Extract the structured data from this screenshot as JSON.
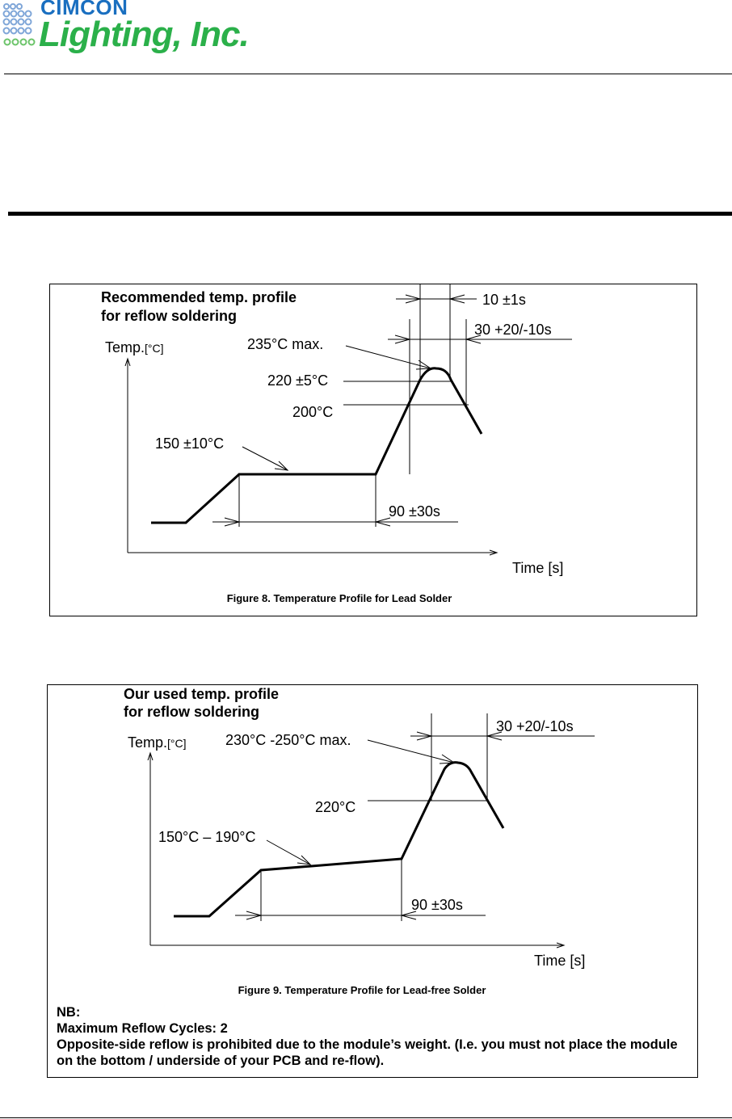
{
  "header": {
    "logo_top": "CIMCON",
    "logo_main": "Lighting, Inc."
  },
  "figure8": {
    "title_line1": "Recommended temp. profile",
    "title_line2": "for reflow soldering",
    "y_axis_label": "Temp.",
    "y_axis_unit": "[°C]",
    "x_axis_label": "Time [s]",
    "peak_label": "235°C max.",
    "peak_time_label": "10 ±1s",
    "above_200_time_label": "30 +20/-10s",
    "level_220_label": "220 ±5°C",
    "level_200_label": "200°C",
    "preheat_label": "150 ±10°C",
    "preheat_time_label": "90 ±30s",
    "caption": "Figure 8.  Temperature Profile for Lead Solder"
  },
  "figure9": {
    "title_line1": "Our used temp. profile",
    "title_line2": "for reflow soldering",
    "y_axis_label": "Temp.",
    "y_axis_unit": "[°C]",
    "x_axis_label": "Time [s]",
    "peak_label": "230°C -250°C max.",
    "above_220_time_label": "30 +20/-10s",
    "level_220_label": "220°C",
    "preheat_label": "150°C – 190°C",
    "preheat_time_label": "90 ±30s",
    "caption": "Figure 9.  Temperature Profile for Lead-free Solder"
  },
  "notes": {
    "heading": "NB:",
    "max_cycles": "Maximum Reflow Cycles:   2",
    "warning": "Opposite-side reflow is prohibited due to the module’s weight. (I.e. you must not place the module on the bottom / underside of your PCB and re-flow)."
  }
}
